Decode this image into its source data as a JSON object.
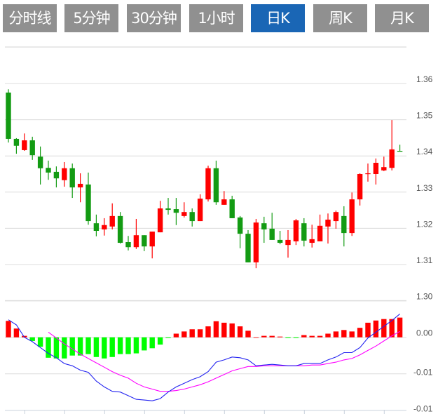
{
  "tabs": [
    {
      "label": "分时线",
      "active": false
    },
    {
      "label": "5分钟",
      "active": false
    },
    {
      "label": "30分钟",
      "active": false
    },
    {
      "label": "1小时",
      "active": false
    },
    {
      "label": "日K",
      "active": true
    },
    {
      "label": "周K",
      "active": false
    },
    {
      "label": "月K",
      "active": false
    }
  ],
  "colors": {
    "up": "#ff0000",
    "down": "#139b13",
    "hist_up": "#ff0000",
    "hist_down": "#00ff00",
    "dif": "#2424f0",
    "dea": "#ff00ff",
    "active_tab": "#1a66b5",
    "tab": "#909090"
  },
  "chart_data": [
    {
      "type": "candlestick",
      "title": "",
      "ylim": [
        1.3,
        1.36
      ],
      "yticks": [
        "1.36",
        "1.35",
        "1.34",
        "1.33",
        "1.32",
        "1.31",
        "1.30"
      ],
      "ytick_values": [
        1.36,
        1.35,
        1.34,
        1.33,
        1.32,
        1.31,
        1.3
      ],
      "grid": true,
      "ohlc_order": [
        "open",
        "high",
        "low",
        "close"
      ],
      "ohlc": [
        [
          1.3575,
          1.3584,
          1.3437,
          1.3447
        ],
        [
          1.3447,
          1.3449,
          1.3406,
          1.3428
        ],
        [
          1.3416,
          1.3462,
          1.3414,
          1.3443
        ],
        [
          1.3443,
          1.3453,
          1.3389,
          1.3402
        ],
        [
          1.3398,
          1.3426,
          1.3321,
          1.3366
        ],
        [
          1.3367,
          1.3387,
          1.3334,
          1.3354
        ],
        [
          1.3356,
          1.3371,
          1.3313,
          1.3338
        ],
        [
          1.3333,
          1.3383,
          1.3315,
          1.3366
        ],
        [
          1.3366,
          1.3379,
          1.3284,
          1.3313
        ],
        [
          1.3313,
          1.3352,
          1.3272,
          1.3323
        ],
        [
          1.3321,
          1.3354,
          1.321,
          1.322
        ],
        [
          1.3214,
          1.3238,
          1.3178,
          1.3193
        ],
        [
          1.3197,
          1.3228,
          1.318,
          1.3209
        ],
        [
          1.3205,
          1.3269,
          1.3197,
          1.3234
        ],
        [
          1.3234,
          1.3245,
          1.3158,
          1.316
        ],
        [
          1.3162,
          1.3179,
          1.3139,
          1.3148
        ],
        [
          1.3148,
          1.3226,
          1.3143,
          1.3181
        ],
        [
          1.3181,
          1.3181,
          1.3137,
          1.315
        ],
        [
          1.315,
          1.3191,
          1.3117,
          1.3191
        ],
        [
          1.3189,
          1.3276,
          1.3189,
          1.3255
        ],
        [
          1.3255,
          1.3284,
          1.3238,
          1.3251
        ],
        [
          1.3253,
          1.3284,
          1.3209,
          1.3243
        ],
        [
          1.3234,
          1.3272,
          1.323,
          1.3245
        ],
        [
          1.3245,
          1.3255,
          1.3205,
          1.322
        ],
        [
          1.322,
          1.3294,
          1.322,
          1.3282
        ],
        [
          1.328,
          1.3373,
          1.3274,
          1.3366
        ],
        [
          1.3366,
          1.3387,
          1.3265,
          1.3272
        ],
        [
          1.3265,
          1.3303,
          1.3265,
          1.328
        ],
        [
          1.328,
          1.329,
          1.3228,
          1.3228
        ],
        [
          1.323,
          1.3234,
          1.3145,
          1.3185
        ],
        [
          1.3185,
          1.3195,
          1.3106,
          1.3106
        ],
        [
          1.3106,
          1.3226,
          1.309,
          1.3216
        ],
        [
          1.3214,
          1.3232,
          1.316,
          1.3197
        ],
        [
          1.3199,
          1.3243,
          1.3168,
          1.3168
        ],
        [
          1.3168,
          1.3193,
          1.3156,
          1.316
        ],
        [
          1.3154,
          1.3195,
          1.3119,
          1.3168
        ],
        [
          1.3164,
          1.3226,
          1.3154,
          1.3222
        ],
        [
          1.3214,
          1.3228,
          1.315,
          1.3166
        ],
        [
          1.316,
          1.321,
          1.3147,
          1.317
        ],
        [
          1.3164,
          1.3238,
          1.3164,
          1.3207
        ],
        [
          1.3205,
          1.3241,
          1.3158,
          1.3224
        ],
        [
          1.322,
          1.3249,
          1.3199,
          1.3245
        ],
        [
          1.3234,
          1.3261,
          1.315,
          1.3187
        ],
        [
          1.3187,
          1.3299,
          1.3179,
          1.328
        ],
        [
          1.328,
          1.3352,
          1.3263,
          1.335
        ],
        [
          1.335,
          1.3379,
          1.3329,
          1.3352
        ],
        [
          1.335,
          1.3393,
          1.3321,
          1.3381
        ],
        [
          1.336,
          1.3398,
          1.3358,
          1.3369
        ],
        [
          1.3367,
          1.3499,
          1.336,
          1.3418
        ],
        [
          1.3414,
          1.3431,
          1.3412,
          1.3412
        ]
      ]
    },
    {
      "type": "macd",
      "ylim": [
        -0.01,
        0.005
      ],
      "yticks": [
        "0.00",
        "-0.01",
        "-0.01"
      ],
      "ytick_values": [
        0,
        -0.005,
        -0.01
      ],
      "histogram": [
        0.00225,
        0.0012,
        0.0002,
        -0.0005,
        -0.0013,
        -0.0028,
        -0.0029,
        -0.0029,
        -0.0025,
        -0.0025,
        -0.0023,
        -0.0027,
        -0.0029,
        -0.0027,
        -0.0023,
        -0.0023,
        -0.0022,
        -0.0018,
        -0.0015,
        -0.001,
        -0.0001,
        0.0005,
        0.0008,
        0.0011,
        0.0011,
        0.0015,
        0.0022,
        0.002,
        0.0019,
        0.0015,
        0.0009,
        0,
        0.0002,
        0.0002,
        0.0001,
        -0.0001,
        -0.0001,
        0.0003,
        0.0002,
        0.0002,
        0.0005,
        0.0008,
        0.001,
        0.0008,
        0.0013,
        0.002,
        0.0023,
        0.0025,
        0.0025,
        0.0027
      ],
      "dif": [
        0.0024,
        0.0017,
        0,
        -0.0006,
        -0.0014,
        -0.0022,
        -0.0028,
        -0.0036,
        -0.0039,
        -0.0045,
        -0.0048,
        -0.006,
        -0.0068,
        -0.0074,
        -0.0075,
        -0.008,
        -0.0085,
        -0.0086,
        -0.0087,
        -0.0084,
        -0.0075,
        -0.0068,
        -0.0063,
        -0.0058,
        -0.0054,
        -0.0047,
        -0.0034,
        -0.0031,
        -0.0027,
        -0.0028,
        -0.0031,
        -0.0039,
        -0.0038,
        -0.0037,
        -0.0038,
        -0.0039,
        -0.0039,
        -0.0036,
        -0.0036,
        -0.0036,
        -0.0031,
        -0.0027,
        -0.0021,
        -0.0021,
        -0.0014,
        -0.0001,
        0.0007,
        0.0015,
        0.0023,
        0.0032
      ],
      "dea": [
        null,
        null,
        null,
        null,
        null,
        0.0007,
        -0.0001,
        -0.0009,
        -0.0016,
        -0.0023,
        -0.0029,
        -0.0035,
        -0.0041,
        -0.0047,
        -0.0052,
        -0.0056,
        -0.0063,
        -0.0068,
        -0.0071,
        -0.0074,
        -0.0074,
        -0.0073,
        -0.0071,
        -0.0068,
        -0.0065,
        -0.0061,
        -0.0056,
        -0.0051,
        -0.0046,
        -0.0043,
        -0.004,
        -0.004,
        -0.0039,
        -0.0039,
        -0.0039,
        -0.0039,
        -0.0039,
        -0.0039,
        -0.0038,
        -0.0038,
        -0.0036,
        -0.0034,
        -0.0031,
        -0.0029,
        -0.0024,
        -0.0018,
        -0.0012,
        -0.0005,
        0.0002,
        0.0008
      ]
    }
  ]
}
